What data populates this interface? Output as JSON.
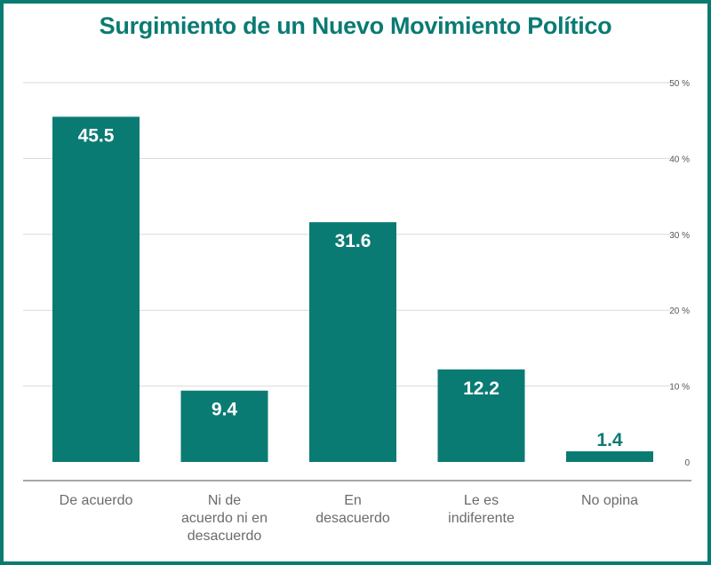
{
  "chart_data": {
    "type": "bar",
    "title": "Surgimiento de un Nuevo Movimiento Político",
    "categories": [
      [
        "De acuerdo"
      ],
      [
        "Ni de",
        "acuerdo ni en",
        "desacuerdo"
      ],
      [
        "En",
        "desacuerdo"
      ],
      [
        "Le es",
        "indiferente"
      ],
      [
        "No opina"
      ]
    ],
    "values": [
      45.5,
      9.4,
      31.6,
      12.2,
      1.4
    ],
    "value_labels": [
      "45.5",
      "9.4",
      "31.6",
      "12.2",
      "1.4"
    ],
    "ylim": [
      0,
      50
    ],
    "y_ticks": [
      0,
      10,
      20,
      30,
      40,
      50
    ],
    "y_tick_labels": [
      "0",
      "10 %",
      "20 %",
      "30 %",
      "40 %",
      "50 %"
    ],
    "y_axis_side": "right",
    "grid": true,
    "xlabel": "",
    "ylabel": "",
    "colors": {
      "bar": "#0a7b73",
      "frame": "#0a7b73",
      "title": "#0a7b73",
      "label_inside": "#ffffff",
      "grid": "#d9d9d9",
      "axis": "#8c8c8c"
    }
  }
}
